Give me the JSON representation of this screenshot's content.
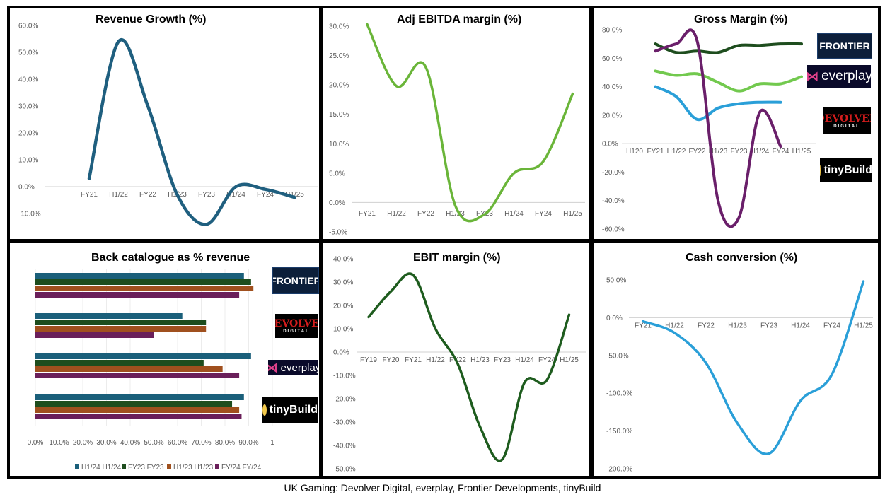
{
  "caption": "UK Gaming: Devolver Digital, everplay, Frontier Developments, tinyBuild",
  "logos": {
    "frontier": "FRONTIER",
    "everplay": "everplay",
    "everplay_mark": "⋈",
    "devolver": "DEVOLVER",
    "devolver_sub": "DIGITAL",
    "tinybuild": "tinyBuild"
  },
  "chart_data": [
    {
      "id": "revenue_growth",
      "type": "line",
      "title": "Revenue Growth (%)",
      "categories": [
        "FY21",
        "H1/22",
        "FY22",
        "H1/23",
        "FY23",
        "H1/24",
        "FY24",
        "H1/25"
      ],
      "ylim": [
        -10,
        60
      ],
      "yticks": [
        "60.0%",
        "50.0%",
        "40.0%",
        "30.0%",
        "20.0%",
        "10.0%",
        "0.0%",
        "-10.0%"
      ],
      "series": [
        {
          "name": "Revenue Growth",
          "color": "#1f5f7f",
          "values": [
            3,
            54,
            30,
            -3,
            -14,
            0,
            -1,
            -4
          ]
        }
      ]
    },
    {
      "id": "adj_ebitda",
      "type": "line",
      "title": "Adj EBITDA margin (%)",
      "categories": [
        "FY21",
        "H1/22",
        "FY22",
        "H1/23",
        "FY23",
        "H1/24",
        "FY24",
        "H1/25"
      ],
      "ylim": [
        -5,
        30
      ],
      "yticks": [
        "30.0%",
        "25.0%",
        "20.0%",
        "15.0%",
        "10.0%",
        "5.0%",
        "0.0%",
        "-5.0%"
      ],
      "series": [
        {
          "name": "Adj EBITDA margin",
          "color": "#6ab539",
          "values": [
            30.3,
            19.8,
            23,
            -0.5,
            -2,
            5,
            7,
            18.5
          ]
        }
      ]
    },
    {
      "id": "gross_margin",
      "type": "line",
      "title": "Gross Margin (%)",
      "categories": [
        "H120",
        "FY21",
        "H1/22",
        "FY22",
        "H1/23",
        "FY23",
        "H1/24",
        "FY24",
        "H1/25"
      ],
      "ylim": [
        -60,
        80
      ],
      "yticks": [
        "80.0%",
        "60.0%",
        "40.0%",
        "20.0%",
        "0.0%",
        "-20.0%",
        "-40.0%",
        "-60.0%"
      ],
      "series": [
        {
          "name": "Frontier",
          "color": "#1e4d1e",
          "values": [
            null,
            70,
            64,
            65,
            64,
            69,
            69,
            70,
            70
          ]
        },
        {
          "name": "everplay",
          "color": "#72c94e",
          "values": [
            null,
            51,
            48,
            49,
            43,
            37,
            42,
            42,
            47
          ]
        },
        {
          "name": "tinyBuild",
          "color": "#2a9fd8",
          "values": [
            null,
            40,
            33,
            17,
            25,
            28,
            29,
            29,
            null
          ]
        },
        {
          "name": "Devolver",
          "color": "#6a1f6a",
          "values": [
            null,
            65,
            70,
            72,
            -40,
            -52,
            22,
            -2,
            null
          ]
        }
      ]
    },
    {
      "id": "back_catalogue",
      "type": "bar",
      "title": "Back catalogue as % revenue",
      "categories": [
        "Frontier",
        "Devolver",
        "everplay",
        "tinyBuild"
      ],
      "xlim": [
        0,
        100
      ],
      "xticks": [
        "0.0%",
        "10.0%",
        "20.0%",
        "30.0%",
        "40.0%",
        "50.0%",
        "60.0%",
        "70.0%",
        "80.0%",
        "90.0%",
        "1"
      ],
      "series": [
        {
          "name": "H1/24",
          "legend": "H1/24 H1/24",
          "color": "#1a5f7a",
          "values": [
            88,
            62,
            91,
            88
          ]
        },
        {
          "name": "FY23",
          "legend": "FY23 FY23",
          "color": "#1e4d1e",
          "values": [
            91,
            72,
            71,
            83
          ]
        },
        {
          "name": "H1/23",
          "legend": "H1/23 H1/23",
          "color": "#a0501e",
          "values": [
            92,
            72,
            79,
            86
          ]
        },
        {
          "name": "FY24",
          "legend": "FY/24 FY/24",
          "color": "#6a1f5a",
          "values": [
            86,
            50,
            86,
            87
          ]
        }
      ]
    },
    {
      "id": "ebit_margin",
      "type": "line",
      "title": "EBIT margin (%)",
      "categories": [
        "FY19",
        "FY20",
        "FY21",
        "H1/22",
        "FY22",
        "H1/23",
        "FY23",
        "H1/24",
        "FY24",
        "H1/25"
      ],
      "ylim": [
        -50,
        40
      ],
      "yticks": [
        "40.0%",
        "30.0%",
        "20.0%",
        "10.0%",
        "0.0%",
        "-10.0%",
        "-20.0%",
        "-30.0%",
        "-40.0%",
        "-50.0%"
      ],
      "series": [
        {
          "name": "EBIT margin",
          "color": "#1e5c1e",
          "values": [
            15,
            26,
            33,
            10,
            -5,
            -32,
            -46,
            -13,
            -12,
            16
          ]
        }
      ]
    },
    {
      "id": "cash_conversion",
      "type": "line",
      "title": "Cash conversion (%)",
      "categories": [
        "FY21",
        "H1/22",
        "FY22",
        "H1/23",
        "FY23",
        "H1/24",
        "FY24",
        "H1/25"
      ],
      "ylim": [
        -200,
        50
      ],
      "yticks": [
        "50.0%",
        "0.0%",
        "-50.0%",
        "-100.0%",
        "-150.0%",
        "-200.0%"
      ],
      "series": [
        {
          "name": "Cash conversion",
          "color": "#2a9fd8",
          "values": [
            -5,
            -20,
            -60,
            -140,
            -180,
            -110,
            -75,
            48
          ]
        }
      ]
    }
  ]
}
